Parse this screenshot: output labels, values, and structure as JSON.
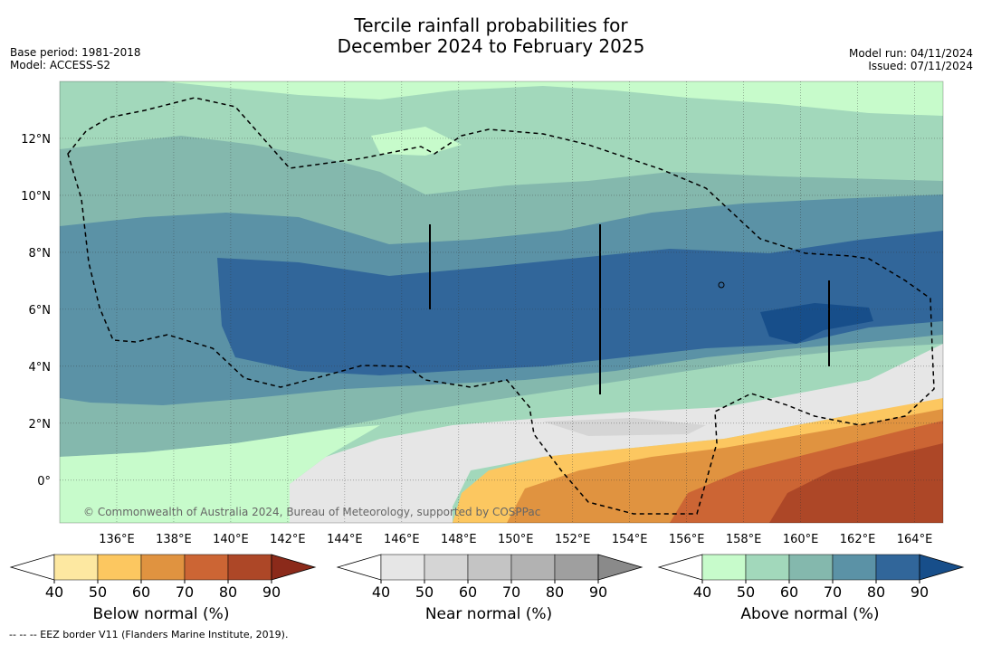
{
  "title_line1": "Tercile rainfall probabilities for",
  "title_line2": "December 2024 to February 2025",
  "base_period": "Base period: 1981-2018",
  "model": "Model: ACCESS-S2",
  "model_run": "Model run: 04/11/2024",
  "issued": "Issued: 07/11/2024",
  "copyright": "© Commonwealth of Australia 2024, Bureau of Meteorology, supported by COSPPac",
  "footnote": "--  --  -- EEZ border V11 (Flanders Marine Institute, 2019).",
  "chart_data": {
    "type": "heatmap",
    "lon_ticks": [
      "136°E",
      "138°E",
      "140°E",
      "142°E",
      "144°E",
      "146°E",
      "148°E",
      "150°E",
      "152°E",
      "154°E",
      "156°E",
      "158°E",
      "160°E",
      "162°E",
      "164°E"
    ],
    "lat_ticks": [
      "12°N",
      "10°N",
      "8°N",
      "6°N",
      "4°N",
      "2°N",
      "0°"
    ],
    "lon_range": [
      134.0,
      165.0
    ],
    "lat_range": [
      -1.5,
      14.0
    ],
    "lon_tick_values": [
      136,
      138,
      140,
      142,
      144,
      146,
      148,
      150,
      152,
      154,
      156,
      158,
      160,
      162,
      164
    ],
    "lat_tick_values": [
      12,
      10,
      8,
      6,
      4,
      2,
      0
    ],
    "colorbars": [
      {
        "label": "Below normal (%)",
        "ticks": [
          "40",
          "50",
          "60",
          "70",
          "80",
          "90"
        ],
        "colors": [
          "#fde8a1",
          "#fcc760",
          "#e09340",
          "#cc6534",
          "#ad4727",
          "#8b2a1a"
        ]
      },
      {
        "label": "Near normal (%)",
        "ticks": [
          "40",
          "50",
          "60",
          "70",
          "80",
          "90"
        ],
        "colors": [
          "#e6e6e6",
          "#d5d5d5",
          "#c4c4c4",
          "#b2b2b2",
          "#9f9f9f",
          "#8a8a8a"
        ]
      },
      {
        "label": "Above normal (%)",
        "ticks": [
          "40",
          "50",
          "60",
          "70",
          "80",
          "90"
        ],
        "colors": [
          "#c7fbcb",
          "#a2d8bb",
          "#84b8ad",
          "#5b92a6",
          "#31669a",
          "#174e8a"
        ]
      }
    ]
  }
}
